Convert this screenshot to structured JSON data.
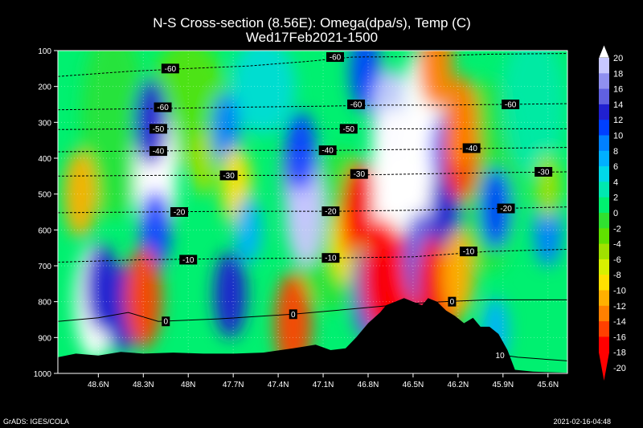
{
  "chart_data": {
    "type": "heatmap",
    "title": "N-S Cross-section (8.56E): Omega(dpa/s), Temp (C)",
    "subtitle": "Wed17Feb2021-1500",
    "xlabel": "",
    "ylabel": "",
    "x_ticks": [
      "48.6N",
      "48.3N",
      "48N",
      "47.7N",
      "47.4N",
      "47.1N",
      "46.8N",
      "46.5N",
      "46.2N",
      "45.9N",
      "45.6N"
    ],
    "x_tick_values": [
      48.6,
      48.3,
      48.0,
      47.7,
      47.4,
      47.1,
      46.8,
      46.5,
      46.2,
      45.9,
      45.6
    ],
    "xlim": [
      48.87,
      45.47
    ],
    "y_ticks": [
      "100",
      "200",
      "300",
      "400",
      "500",
      "600",
      "700",
      "800",
      "900",
      "1000"
    ],
    "y_tick_values": [
      100,
      200,
      300,
      400,
      500,
      600,
      700,
      800,
      900,
      1000
    ],
    "ylim": [
      100,
      1000
    ],
    "colorbar": {
      "labels": [
        "20",
        "18",
        "16",
        "14",
        "12",
        "10",
        "8",
        "6",
        "4",
        "2",
        "0",
        "-2",
        "-4",
        "-6",
        "-8",
        "-10",
        "-12",
        "-14",
        "-16",
        "-18",
        "-20"
      ],
      "colors": [
        "#ffffff",
        "#c8c8ff",
        "#9090f0",
        "#6060e0",
        "#2020d0",
        "#0040ff",
        "#0080ff",
        "#00b0ff",
        "#00d8e8",
        "#00e8b0",
        "#00f070",
        "#30e030",
        "#60e000",
        "#a0e000",
        "#d8f000",
        "#ffe000",
        "#ffb000",
        "#ff8000",
        "#ff4000",
        "#ff0000",
        "#ff0000"
      ]
    },
    "omega_cells": [
      {
        "lat": 48.62,
        "p": 800,
        "w": 20
      },
      {
        "lat": 48.58,
        "p": 760,
        "w": 12
      },
      {
        "lat": 48.45,
        "p": 820,
        "w": 12
      },
      {
        "lat": 48.22,
        "p": 400,
        "w": 20
      },
      {
        "lat": 48.22,
        "p": 480,
        "w": 20
      },
      {
        "lat": 48.25,
        "p": 300,
        "w": 12
      },
      {
        "lat": 48.22,
        "p": 600,
        "w": 10
      },
      {
        "lat": 48.3,
        "p": 790,
        "w": -16
      },
      {
        "lat": 48.72,
        "p": 500,
        "w": -12
      },
      {
        "lat": 47.9,
        "p": 410,
        "w": -6
      },
      {
        "lat": 47.75,
        "p": 320,
        "w": 8
      },
      {
        "lat": 47.72,
        "p": 780,
        "w": 12
      },
      {
        "lat": 47.68,
        "p": 480,
        "w": -10
      },
      {
        "lat": 47.6,
        "p": 600,
        "w": 6
      },
      {
        "lat": 47.25,
        "p": 450,
        "w": 16
      },
      {
        "lat": 47.22,
        "p": 550,
        "w": 18
      },
      {
        "lat": 47.25,
        "p": 380,
        "w": 10
      },
      {
        "lat": 47.3,
        "p": 860,
        "w": -16
      },
      {
        "lat": 46.95,
        "p": 640,
        "w": -10
      },
      {
        "lat": 46.85,
        "p": 560,
        "w": -18
      },
      {
        "lat": 46.84,
        "p": 730,
        "w": -6
      },
      {
        "lat": 46.8,
        "p": 780,
        "w": 14
      },
      {
        "lat": 46.82,
        "p": 160,
        "w": 10
      },
      {
        "lat": 46.65,
        "p": 300,
        "w": 18
      },
      {
        "lat": 46.64,
        "p": 420,
        "w": 20
      },
      {
        "lat": 46.63,
        "p": 550,
        "w": 20
      },
      {
        "lat": 46.7,
        "p": 730,
        "w": -20
      },
      {
        "lat": 46.55,
        "p": 760,
        "w": -18
      },
      {
        "lat": 46.43,
        "p": 250,
        "w": 20
      },
      {
        "lat": 46.43,
        "p": 400,
        "w": 20
      },
      {
        "lat": 46.42,
        "p": 550,
        "w": 20
      },
      {
        "lat": 46.45,
        "p": 680,
        "w": 14
      },
      {
        "lat": 46.33,
        "p": 760,
        "w": -20
      },
      {
        "lat": 46.28,
        "p": 380,
        "w": 10
      },
      {
        "lat": 46.28,
        "p": 540,
        "w": 12
      },
      {
        "lat": 46.18,
        "p": 380,
        "w": -16
      },
      {
        "lat": 46.18,
        "p": 300,
        "w": -14
      },
      {
        "lat": 46.2,
        "p": 720,
        "w": -12
      },
      {
        "lat": 46.35,
        "p": 130,
        "w": -14
      },
      {
        "lat": 45.95,
        "p": 540,
        "w": 10
      },
      {
        "lat": 45.6,
        "p": 600,
        "w": 8
      },
      {
        "lat": 45.6,
        "p": 480,
        "w": -6
      },
      {
        "lat": 45.95,
        "p": 880,
        "w": 6
      }
    ],
    "temperature_contours": [
      {
        "label": "-60",
        "points": [
          [
            48.87,
            172
          ],
          [
            48.4,
            158
          ],
          [
            48.0,
            150
          ],
          [
            47.6,
            143
          ],
          [
            47.2,
            130
          ],
          [
            46.9,
            118
          ],
          [
            46.5,
            117
          ],
          [
            46.0,
            110
          ],
          [
            45.47,
            108
          ]
        ],
        "label_at": [
          [
            48.12,
            150
          ],
          [
            47.02,
            118
          ]
        ]
      },
      {
        "label": "-60",
        "points": [
          [
            48.87,
            265
          ],
          [
            48.3,
            262
          ],
          [
            47.7,
            258
          ],
          [
            47.1,
            255
          ],
          [
            46.7,
            252
          ],
          [
            46.3,
            252
          ],
          [
            45.9,
            250
          ],
          [
            45.47,
            248
          ]
        ],
        "label_at": [
          [
            48.17,
            258
          ],
          [
            46.88,
            250
          ],
          [
            45.85,
            250
          ]
        ]
      },
      {
        "label": "-50",
        "points": [
          [
            48.87,
            320
          ],
          [
            48.3,
            318
          ],
          [
            47.6,
            318
          ],
          [
            47.0,
            318
          ],
          [
            46.5,
            318
          ],
          [
            46.0,
            318
          ],
          [
            45.47,
            318
          ]
        ],
        "label_at": [
          [
            48.2,
            318
          ],
          [
            46.93,
            318
          ]
        ]
      },
      {
        "label": "-40",
        "points": [
          [
            48.87,
            382
          ],
          [
            48.3,
            380
          ],
          [
            47.7,
            378
          ],
          [
            47.0,
            378
          ],
          [
            46.4,
            375
          ],
          [
            45.9,
            372
          ],
          [
            45.47,
            370
          ]
        ],
        "label_at": [
          [
            48.2,
            380
          ],
          [
            47.07,
            378
          ],
          [
            46.11,
            372
          ]
        ]
      },
      {
        "label": "-30",
        "points": [
          [
            48.87,
            450
          ],
          [
            48.2,
            448
          ],
          [
            47.7,
            448
          ],
          [
            47.0,
            448
          ],
          [
            46.5,
            444
          ],
          [
            45.9,
            440
          ],
          [
            45.47,
            438
          ]
        ],
        "label_at": [
          [
            47.73,
            448
          ],
          [
            46.86,
            444
          ],
          [
            45.63,
            438
          ]
        ]
      },
      {
        "label": "-20",
        "points": [
          [
            48.87,
            552
          ],
          [
            48.3,
            550
          ],
          [
            47.7,
            548
          ],
          [
            47.0,
            548
          ],
          [
            46.5,
            545
          ],
          [
            45.9,
            540
          ],
          [
            45.47,
            536
          ]
        ],
        "label_at": [
          [
            48.06,
            550
          ],
          [
            47.05,
            548
          ],
          [
            45.88,
            540
          ]
        ]
      },
      {
        "label": "-10",
        "points": [
          [
            48.87,
            690
          ],
          [
            48.3,
            683
          ],
          [
            47.7,
            680
          ],
          [
            47.0,
            678
          ],
          [
            46.5,
            675
          ],
          [
            46.0,
            660
          ],
          [
            45.47,
            654
          ]
        ],
        "label_at": [
          [
            48.0,
            683
          ],
          [
            47.05,
            678
          ],
          [
            46.13,
            660
          ]
        ]
      },
      {
        "label": "0",
        "points": [
          [
            48.87,
            855
          ],
          [
            48.6,
            845
          ],
          [
            48.4,
            830
          ],
          [
            48.2,
            855
          ],
          [
            47.8,
            848
          ],
          [
            47.3,
            835
          ],
          [
            46.9,
            820
          ],
          [
            46.5,
            805
          ],
          [
            46.3,
            800
          ],
          [
            46.0,
            795
          ],
          [
            45.47,
            795
          ]
        ],
        "label_at": [
          [
            48.15,
            855
          ],
          [
            47.3,
            835
          ],
          [
            46.24,
            800
          ]
        ]
      },
      {
        "label": "10",
        "points": [
          [
            46.05,
            940
          ],
          [
            45.8,
            955
          ],
          [
            45.47,
            965
          ]
        ],
        "label_at": [
          [
            45.92,
            950
          ]
        ]
      }
    ],
    "terrain_top_hPa": [
      [
        48.87,
        955
      ],
      [
        48.75,
        945
      ],
      [
        48.6,
        950
      ],
      [
        48.45,
        940
      ],
      [
        48.3,
        945
      ],
      [
        48.1,
        942
      ],
      [
        47.9,
        945
      ],
      [
        47.7,
        945
      ],
      [
        47.5,
        942
      ],
      [
        47.3,
        930
      ],
      [
        47.15,
        920
      ],
      [
        47.05,
        935
      ],
      [
        46.95,
        930
      ],
      [
        46.88,
        900
      ],
      [
        46.8,
        860
      ],
      [
        46.72,
        830
      ],
      [
        46.68,
        810
      ],
      [
        46.62,
        800
      ],
      [
        46.56,
        790
      ],
      [
        46.5,
        800
      ],
      [
        46.44,
        810
      ],
      [
        46.4,
        790
      ],
      [
        46.34,
        800
      ],
      [
        46.28,
        825
      ],
      [
        46.22,
        840
      ],
      [
        46.16,
        860
      ],
      [
        46.1,
        845
      ],
      [
        46.05,
        870
      ],
      [
        45.99,
        870
      ],
      [
        45.93,
        890
      ],
      [
        45.87,
        935
      ],
      [
        45.82,
        990
      ],
      [
        45.7,
        995
      ],
      [
        45.47,
        998
      ]
    ]
  },
  "footer": {
    "left": "GrADS: IGES/COLA",
    "right": "2021-02-16-04:48"
  }
}
